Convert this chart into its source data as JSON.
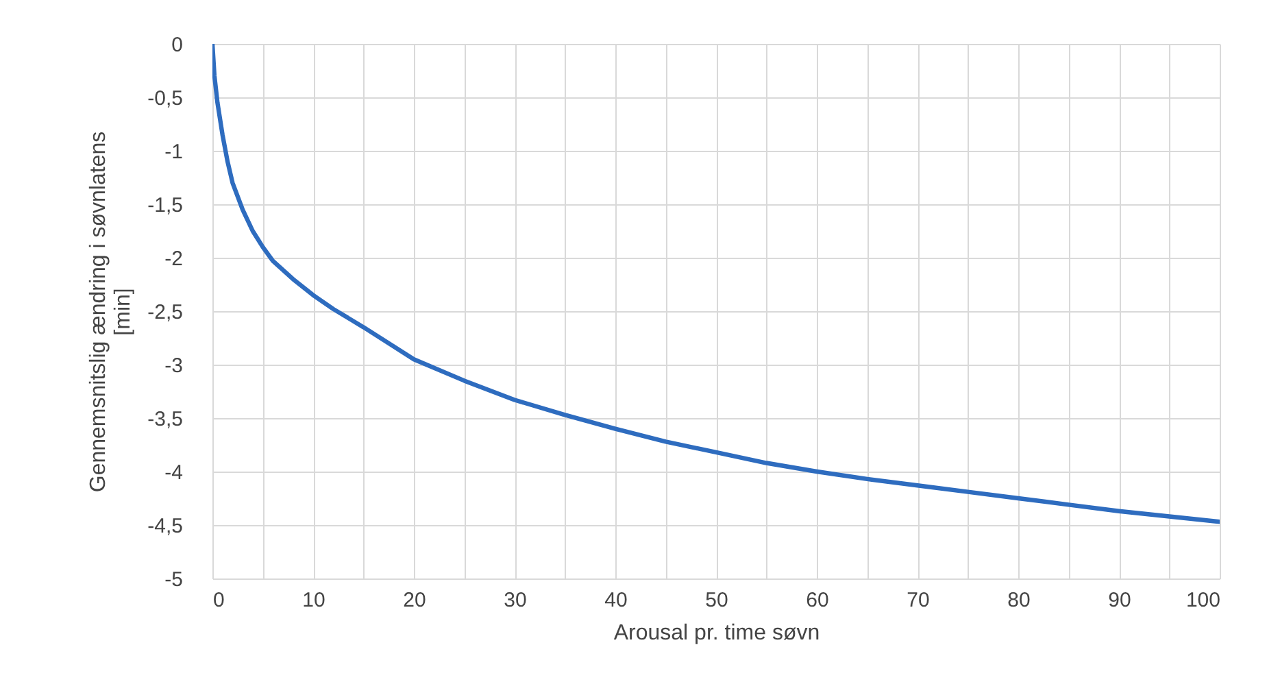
{
  "chart_data": {
    "type": "line",
    "xlabel": "Arousal pr. time søvn",
    "ylabel": "Gennemsnitslig ændring i søvnlatens [min]",
    "x": [
      0,
      0.2,
      0.5,
      1,
      1.5,
      2,
      3,
      4,
      5,
      6,
      8,
      10,
      12,
      15,
      20,
      25,
      30,
      35,
      40,
      45,
      50,
      55,
      60,
      65,
      70,
      75,
      80,
      85,
      90,
      95,
      100
    ],
    "series": [
      {
        "color": "#2e6cbf",
        "values": [
          0,
          -0.3,
          -0.55,
          -0.85,
          -1.1,
          -1.3,
          -1.55,
          -1.75,
          -1.9,
          -2.03,
          -2.2,
          -2.35,
          -2.48,
          -2.65,
          -2.95,
          -3.15,
          -3.33,
          -3.47,
          -3.6,
          -3.72,
          -3.82,
          -3.92,
          -4.0,
          -4.07,
          -4.13,
          -4.19,
          -4.25,
          -4.31,
          -4.37,
          -4.42,
          -4.47
        ]
      }
    ],
    "xlim": [
      0,
      100
    ],
    "xticks": [
      0,
      {
        "value": 5,
        "label": null
      },
      10,
      {
        "value": 15,
        "label": null
      },
      20,
      {
        "value": 25,
        "label": null
      },
      30,
      {
        "value": 35,
        "label": null
      },
      40,
      {
        "value": 45,
        "label": null
      },
      50,
      {
        "value": 55,
        "label": null
      },
      60,
      {
        "value": 65,
        "label": null
      },
      70,
      {
        "value": 75,
        "label": null
      },
      80,
      {
        "value": 85,
        "label": null
      },
      90,
      {
        "value": 95,
        "label": null
      },
      100
    ],
    "ylim": [
      -5,
      0
    ],
    "yticks": [
      {
        "value": 0,
        "label": "0"
      },
      {
        "value": -0.5,
        "label": "-0,5"
      },
      {
        "value": -1,
        "label": "-1"
      },
      {
        "value": -1.5,
        "label": "-1,5"
      },
      {
        "value": -2,
        "label": "-2"
      },
      {
        "value": -2.5,
        "label": "-2,5"
      },
      {
        "value": -3,
        "label": "-3"
      },
      {
        "value": -3.5,
        "label": "-3,5"
      },
      {
        "value": -4,
        "label": "-4"
      },
      {
        "value": -4.5,
        "label": "-4,5"
      },
      {
        "value": -5,
        "label": "-5"
      }
    ],
    "grid": true,
    "marker": "none",
    "line_style": "solid"
  }
}
